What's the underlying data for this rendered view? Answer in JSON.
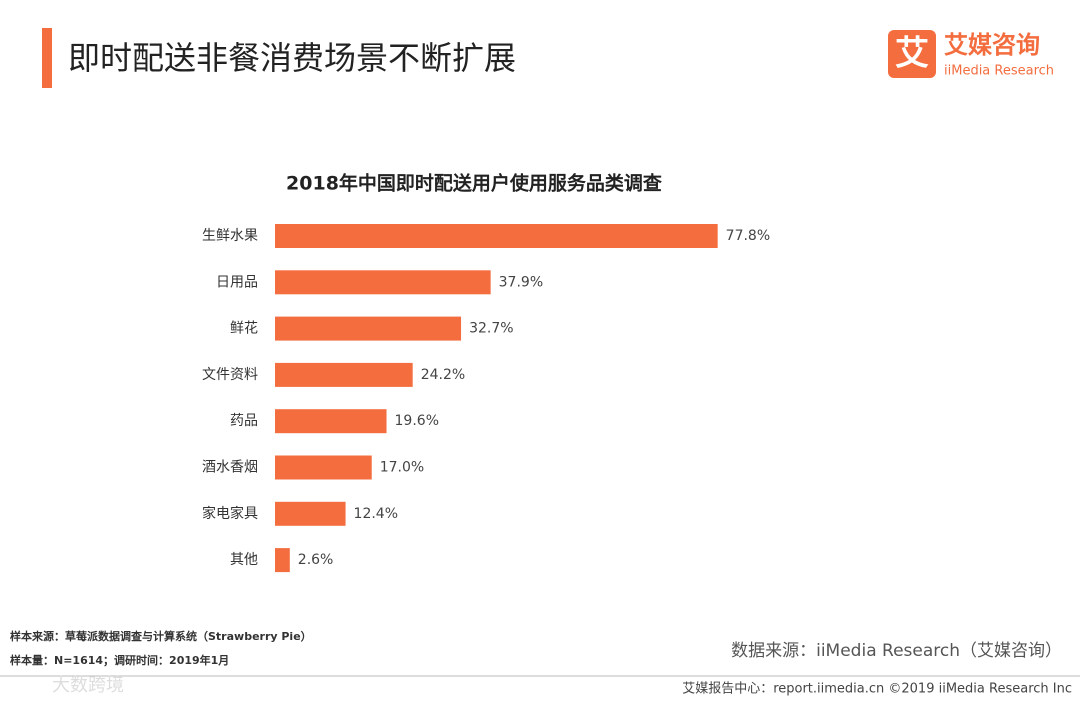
{
  "header": {
    "title": "即时配送非餐消费场景不断扩展",
    "logo_mark": "艾",
    "logo_name": "艾媒咨询",
    "logo_sub": "iiMedia Research"
  },
  "chart_data": {
    "type": "bar",
    "orientation": "horizontal",
    "title": "2018年中国即时配送用户使用服务品类调查",
    "categories": [
      "生鲜水果",
      "日用品",
      "鲜花",
      "文件资料",
      "药品",
      "酒水香烟",
      "家电家具",
      "其他"
    ],
    "values": [
      77.8,
      37.9,
      32.7,
      24.2,
      19.6,
      17.0,
      12.4,
      2.6
    ],
    "value_labels": [
      "77.8%",
      "37.9%",
      "32.7%",
      "24.2%",
      "19.6%",
      "17.0%",
      "12.4%",
      "2.6%"
    ],
    "color": "#f46d3f"
  },
  "notes": {
    "sample_source": "样本来源：草莓派数据调查与计算系统（Strawberry Pie）",
    "sample_size": "样本量：N=1614；调研时间：2019年1月",
    "data_source": "数据来源：iiMedia Research（艾媒咨询）"
  },
  "footer": {
    "text": "艾媒报告中心：report.iimedia.cn  ©2019  iiMedia Research Inc",
    "watermark": "大数跨境"
  }
}
